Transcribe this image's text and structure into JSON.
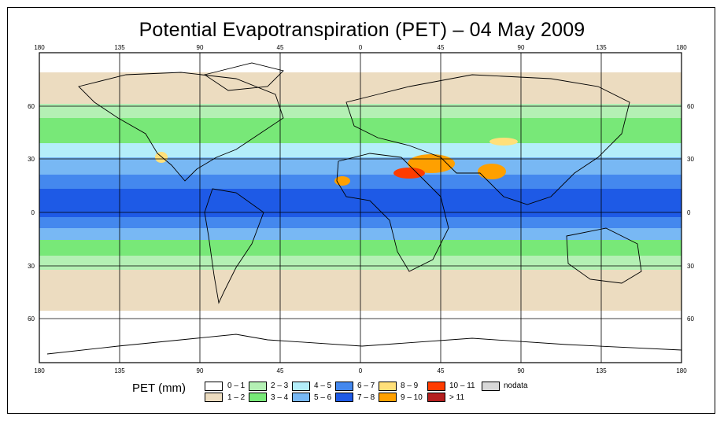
{
  "title": "Potential Evapotranspiration (PET) – 04 May 2009",
  "axes": {
    "lon_ticks": [
      "180",
      "135",
      "90",
      "45",
      "0",
      "45",
      "90",
      "135",
      "180"
    ],
    "lat_ticks": [
      "60",
      "30",
      "0",
      "30",
      "60"
    ]
  },
  "legend": {
    "label": "PET (mm)",
    "items": [
      {
        "label": "0 – 1",
        "color": "#ffffff"
      },
      {
        "label": "1 – 2",
        "color": "#ecdcc0"
      },
      {
        "label": "2 – 3",
        "color": "#b4f0b4"
      },
      {
        "label": "3 – 4",
        "color": "#78e878"
      },
      {
        "label": "4 – 5",
        "color": "#b4eefa"
      },
      {
        "label": "5 – 6",
        "color": "#78b8f4"
      },
      {
        "label": "6 – 7",
        "color": "#4488ee"
      },
      {
        "label": "7 – 8",
        "color": "#1e5ae6"
      },
      {
        "label": "8 – 9",
        "color": "#ffe07a"
      },
      {
        "label": "9 – 10",
        "color": "#ffa000"
      },
      {
        "label": "10 – 11",
        "color": "#ff3c00"
      },
      {
        "label": "> 11",
        "color": "#b41e1e"
      },
      {
        "label": "nodata",
        "color": "#d8d8d8"
      }
    ]
  }
}
